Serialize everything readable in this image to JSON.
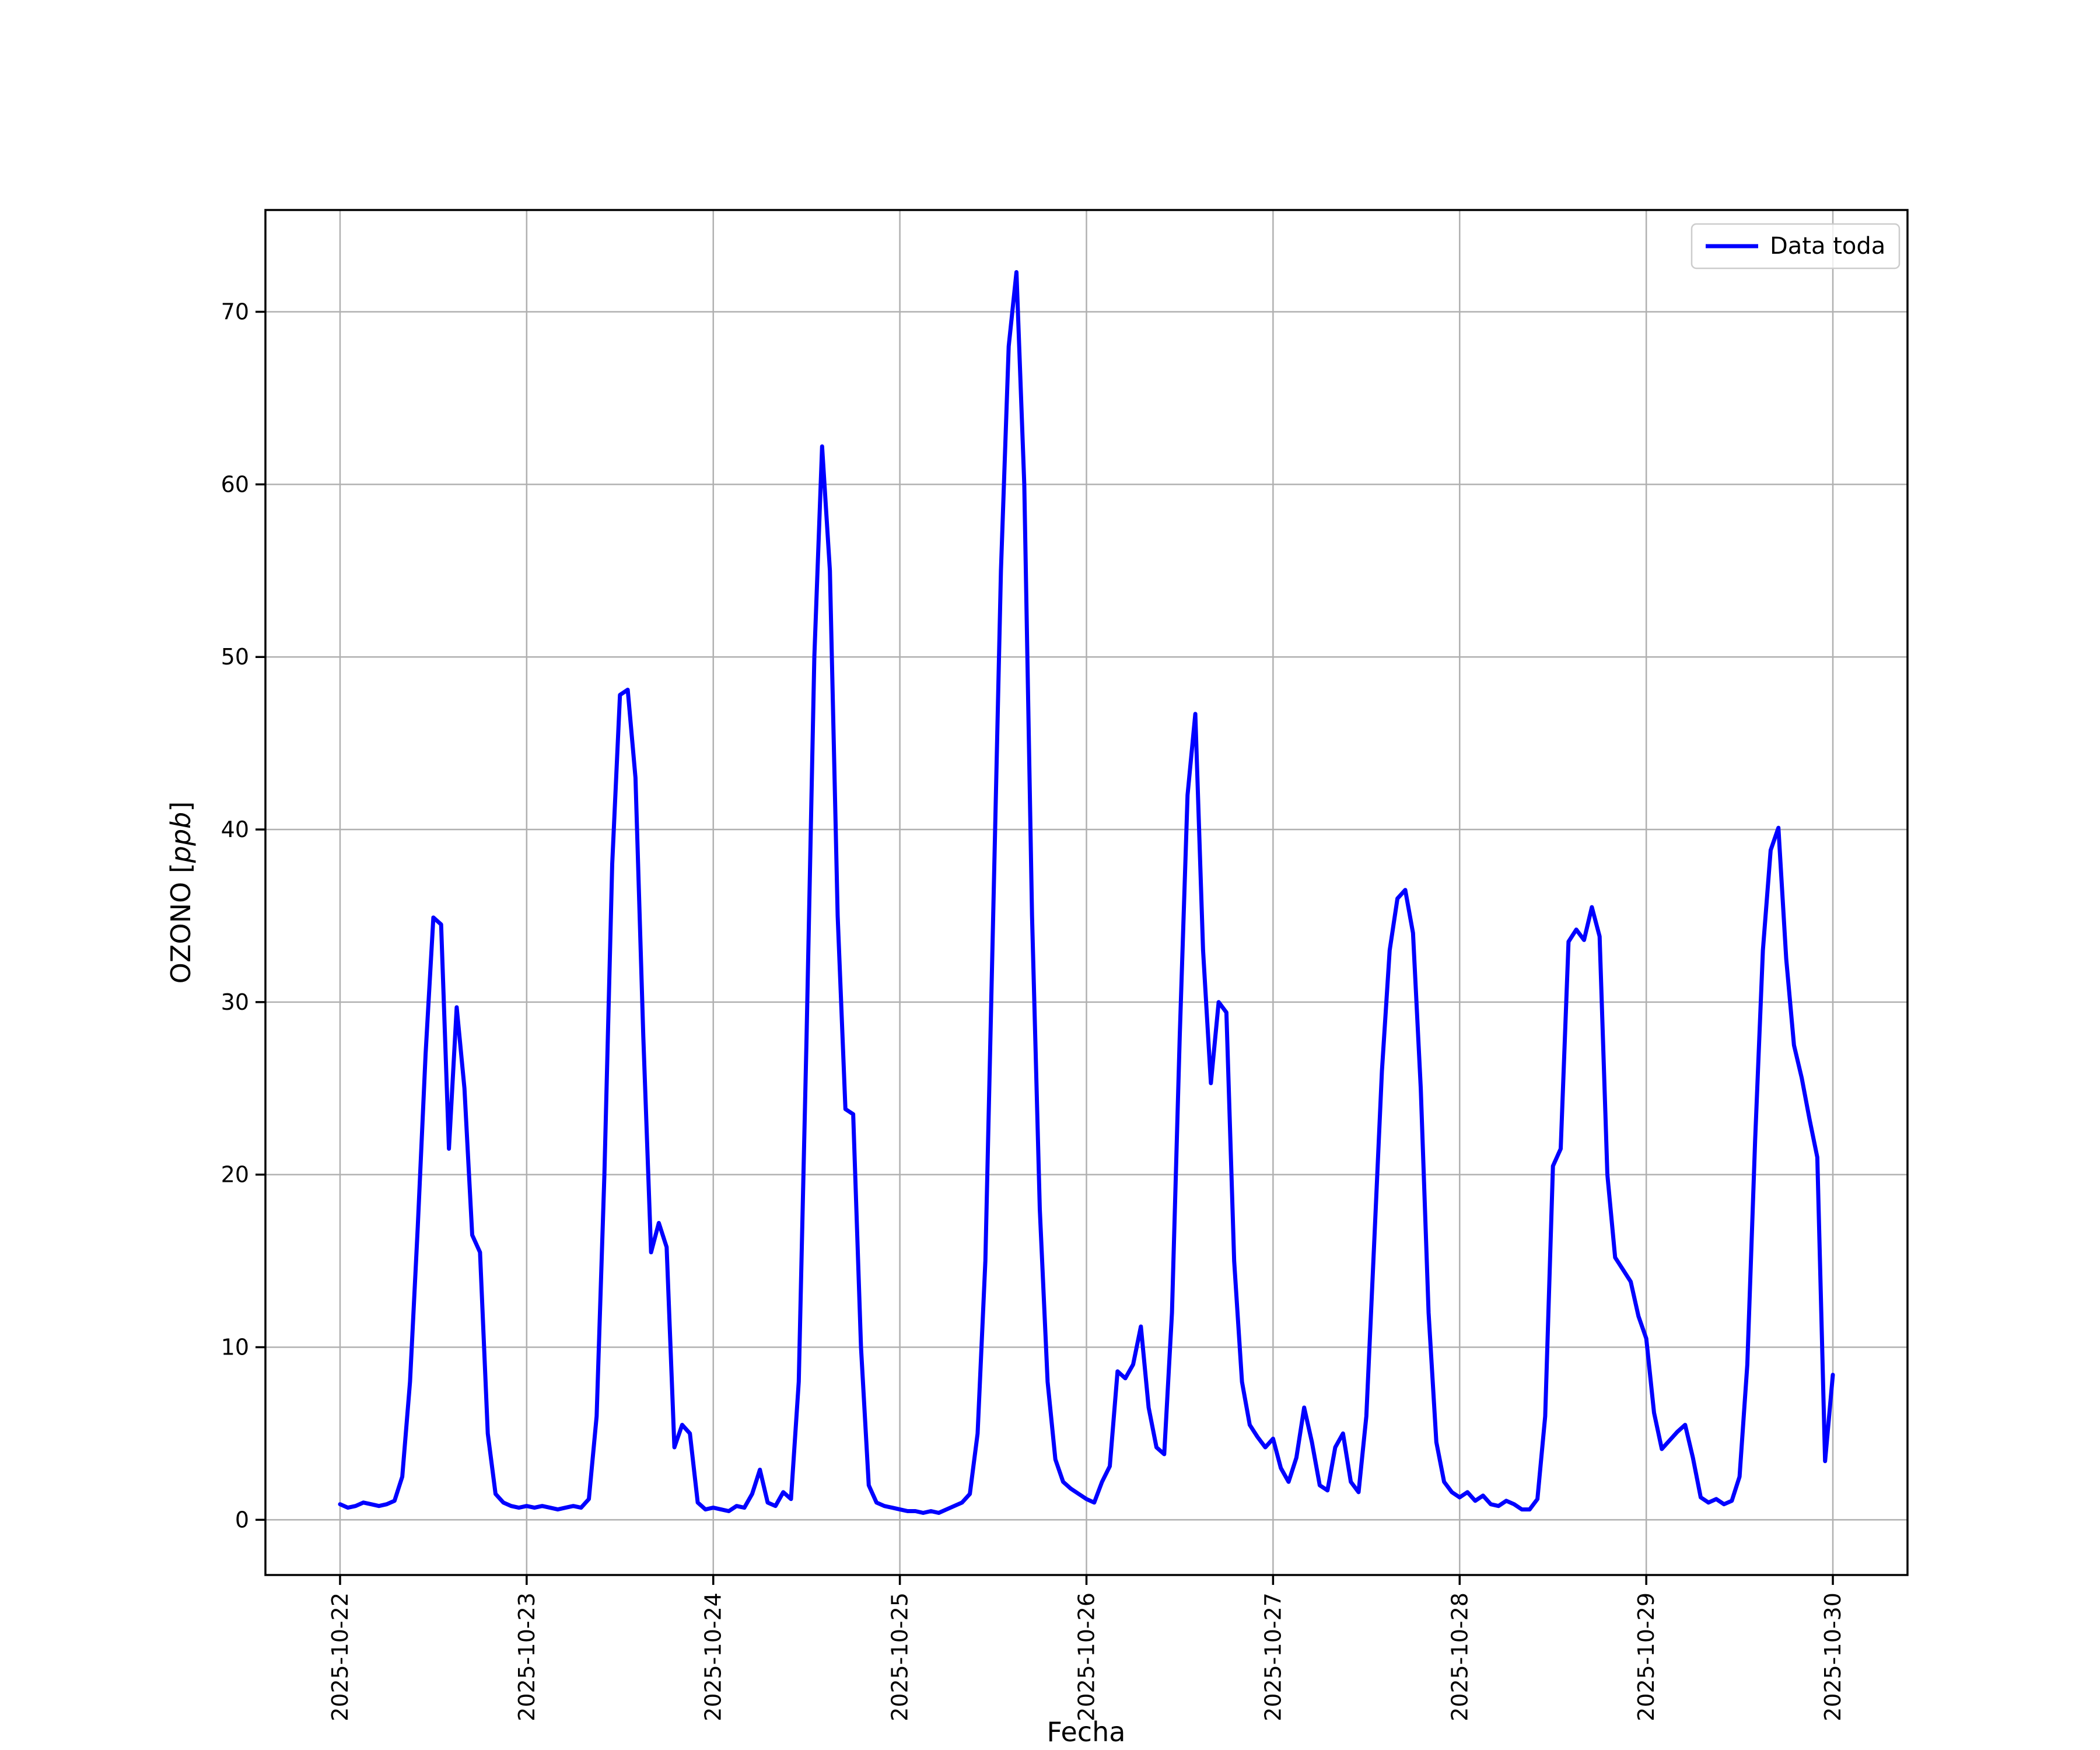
{
  "figure": {
    "title": "",
    "xlabel": "Fecha",
    "ylabel_prefix": "OZONO [",
    "ylabel_italic": "ppb",
    "ylabel_suffix": "]",
    "legend_label": "Data toda",
    "line_color": "#0000ff",
    "grid_color": "#b0b0b0"
  },
  "chart_data": {
    "type": "line",
    "title": "",
    "xlabel": "Fecha",
    "ylabel": "OZONO [ppb]",
    "legend_position": "upper right",
    "grid": true,
    "x_tick_labels": [
      "2025-10-22",
      "2025-10-23",
      "2025-10-24",
      "2025-10-25",
      "2025-10-26",
      "2025-10-27",
      "2025-10-28",
      "2025-10-29",
      "2025-10-30"
    ],
    "x_tick_hours": [
      0,
      24,
      48,
      72,
      96,
      120,
      144,
      168,
      192
    ],
    "y_ticks": [
      0,
      10,
      20,
      30,
      40,
      50,
      60,
      70
    ],
    "xlim_hours": [
      -9.6,
      201.6
    ],
    "ylim": [
      -3.2,
      75.9
    ],
    "series": [
      {
        "name": "Data toda",
        "color": "#0000ff",
        "x_hours": [
          0,
          1,
          2,
          3,
          4,
          5,
          6,
          7,
          8,
          9,
          10,
          11,
          12,
          13,
          14,
          15,
          16,
          17,
          18,
          19,
          20,
          21,
          22,
          23,
          24,
          25,
          26,
          27,
          28,
          29,
          30,
          31,
          32,
          33,
          34,
          35,
          36,
          37,
          38,
          39,
          40,
          41,
          42,
          43,
          44,
          45,
          46,
          47,
          48,
          49,
          50,
          51,
          52,
          53,
          54,
          55,
          56,
          57,
          58,
          59,
          60,
          61,
          62,
          63,
          64,
          65,
          66,
          67,
          68,
          69,
          70,
          71,
          72,
          73,
          74,
          75,
          76,
          77,
          78,
          79,
          80,
          81,
          82,
          83,
          84,
          85,
          86,
          87,
          88,
          89,
          90,
          91,
          92,
          93,
          94,
          95,
          96,
          97,
          98,
          99,
          100,
          101,
          102,
          103,
          104,
          105,
          106,
          107,
          108,
          109,
          110,
          111,
          112,
          113,
          114,
          115,
          116,
          117,
          118,
          119,
          120,
          121,
          122,
          123,
          124,
          125,
          126,
          127,
          128,
          129,
          130,
          131,
          132,
          133,
          134,
          135,
          136,
          137,
          138,
          139,
          140,
          141,
          142,
          143,
          144,
          145,
          146,
          147,
          148,
          149,
          150,
          151,
          152,
          153,
          154,
          155,
          156,
          157,
          158,
          159,
          160,
          161,
          162,
          163,
          164,
          165,
          166,
          167,
          168,
          169,
          170,
          171,
          172,
          173,
          174,
          175,
          176,
          177,
          178,
          179,
          180,
          181,
          182,
          183,
          184,
          185,
          186,
          187,
          188,
          189,
          190,
          191,
          192
        ],
        "values": [
          0.9,
          0.7,
          0.8,
          1.0,
          0.9,
          0.8,
          0.9,
          1.1,
          2.5,
          8.0,
          17.0,
          27.0,
          34.9,
          34.5,
          21.5,
          29.7,
          25.0,
          16.5,
          15.5,
          5.0,
          1.5,
          1.0,
          0.8,
          0.7,
          0.8,
          0.7,
          0.8,
          0.7,
          0.6,
          0.7,
          0.8,
          0.7,
          1.2,
          6.0,
          20.0,
          38.0,
          47.8,
          48.1,
          43.0,
          28.0,
          15.5,
          17.2,
          15.8,
          4.2,
          5.5,
          5.0,
          1.0,
          0.6,
          0.7,
          0.6,
          0.5,
          0.8,
          0.7,
          1.5,
          2.9,
          1.0,
          0.8,
          1.6,
          1.2,
          8.0,
          28.0,
          50.0,
          62.2,
          55.0,
          35.0,
          23.8,
          23.5,
          10.0,
          2.0,
          1.0,
          0.8,
          0.7,
          0.6,
          0.5,
          0.5,
          0.4,
          0.5,
          0.4,
          0.6,
          0.8,
          1.0,
          1.5,
          5.0,
          15.0,
          35.0,
          55.0,
          68.0,
          72.3,
          60.0,
          35.0,
          18.0,
          8.0,
          3.5,
          2.2,
          1.8,
          1.5,
          1.2,
          1.0,
          2.2,
          3.1,
          8.6,
          8.2,
          9.0,
          11.2,
          6.5,
          4.2,
          3.8,
          12.0,
          28.0,
          42.0,
          46.7,
          33.0,
          25.3,
          30.0,
          29.4,
          15.0,
          8.0,
          5.5,
          4.8,
          4.2,
          4.7,
          3.0,
          2.2,
          3.6,
          6.5,
          4.5,
          2.0,
          1.7,
          4.2,
          5.0,
          2.2,
          1.6,
          6.0,
          16.0,
          26.0,
          33.0,
          36.0,
          36.5,
          34.0,
          25.0,
          12.0,
          4.5,
          2.2,
          1.6,
          1.3,
          1.6,
          1.1,
          1.4,
          0.9,
          0.8,
          1.1,
          0.9,
          0.6,
          0.6,
          1.2,
          6.0,
          20.5,
          21.5,
          33.5,
          34.2,
          33.6,
          35.5,
          33.8,
          20.0,
          15.2,
          14.5,
          13.8,
          11.8,
          10.5,
          6.2,
          4.1,
          4.6,
          5.1,
          5.5,
          3.6,
          1.3,
          1.0,
          1.2,
          0.9,
          1.1,
          2.5,
          9.0,
          22.0,
          33.0,
          38.8,
          40.1,
          32.5,
          27.5,
          25.6,
          23.2,
          21.0,
          3.4,
          8.4
        ]
      }
    ]
  }
}
